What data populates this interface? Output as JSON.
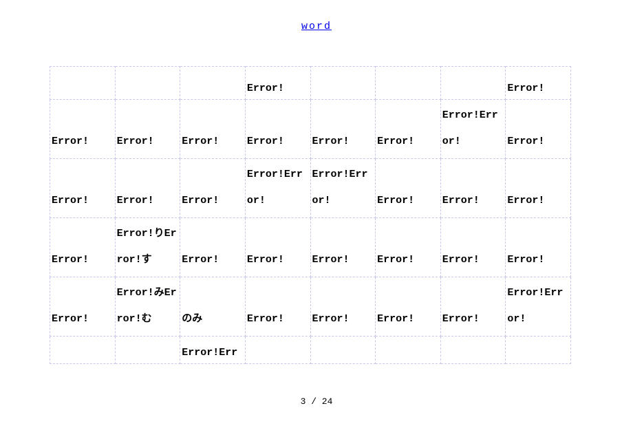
{
  "header": {
    "link_text": "word",
    "link_color": "#0000ee"
  },
  "table": {
    "columns": 8,
    "border_color": "#c8c8e8",
    "rows": [
      [
        "",
        "",
        "",
        "Error!",
        "",
        "",
        "",
        "Error!"
      ],
      [
        "Error!",
        "Error!",
        "Error!",
        "Error!",
        "Error!",
        "Error!",
        "Error!Error!",
        "Error!"
      ],
      [
        "Error!",
        "Error!",
        "Error!",
        "Error!Error!",
        "Error!Error!",
        "Error!",
        "Error!",
        "Error!"
      ],
      [
        "Error!",
        "Error!りError!す",
        "Error!",
        "Error!",
        "Error!",
        "Error!",
        "Error!",
        "Error!"
      ],
      [
        "Error!",
        "Error!みError!む",
        "のみ",
        "Error!",
        "Error!",
        "Error!",
        "Error!",
        "Error!Error!"
      ],
      [
        "",
        "",
        "Error!Err",
        "",
        "",
        "",
        "",
        ""
      ]
    ],
    "row_styles": [
      "",
      "tall",
      "tall",
      "tall",
      "tall",
      "last"
    ]
  },
  "footer": {
    "page_current": "3",
    "page_sep": " / ",
    "page_total": "24"
  },
  "style": {
    "background_color": "#ffffff",
    "font_family": "monospace",
    "cell_font_weight": "bold"
  }
}
